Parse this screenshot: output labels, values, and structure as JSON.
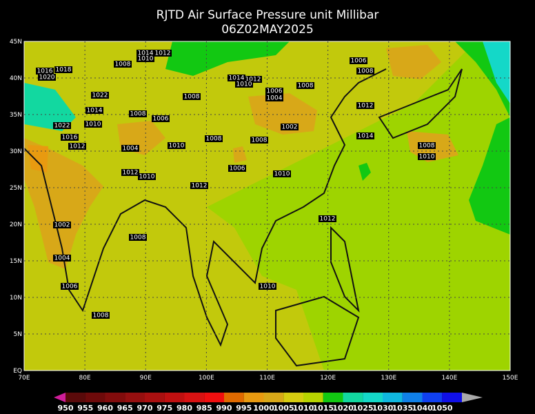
{
  "title": "RJTD Air Surface Pressure unit Millibar",
  "subtitle": "06Z02MAY2025",
  "lat_labels": [
    "45N",
    "40N",
    "35N",
    "30N",
    "25N",
    "20N",
    "15N",
    "10N",
    "5N",
    "EQ"
  ],
  "lon_labels": [
    "70E",
    "80E",
    "90E",
    "100E",
    "110E",
    "120E",
    "130E",
    "140E",
    "150E"
  ],
  "colorbar": {
    "labels": [
      "950",
      "955",
      "960",
      "965",
      "970",
      "975",
      "980",
      "985",
      "990",
      "995",
      "1000",
      "1005",
      "1010",
      "1015",
      "1020",
      "1025",
      "1030",
      "1035",
      "1040",
      "1050"
    ],
    "colors": [
      "#d01e9a",
      "#5a0a0a",
      "#6e0a0a",
      "#820c0c",
      "#960f0f",
      "#aa1010",
      "#c01010",
      "#d81212",
      "#f00f0f",
      "#e06a00",
      "#e89a10",
      "#d8a818",
      "#d6cc10",
      "#b8d400",
      "#12c812",
      "#12d8a0",
      "#14d8c8",
      "#10b8e0",
      "#1080e8",
      "#1040f0",
      "#1010e8",
      "#aaaaaa"
    ]
  },
  "isobar_labels": [
    "1014",
    "1012",
    "1010",
    "1008",
    "1016",
    "1018",
    "1020",
    "1006",
    "1008",
    "1014",
    "1012",
    "1010",
    "1008",
    "1006",
    "1004",
    "1008",
    "1022",
    "1012",
    "1008",
    "1006",
    "1014",
    "1010",
    "1022",
    "1002",
    "1016",
    "1014",
    "1012",
    "1008",
    "1008",
    "1004",
    "1010",
    "1008",
    "1010",
    "1006",
    "1012",
    "1010",
    "1010",
    "1012",
    "1012",
    "1002",
    "1008",
    "1004",
    "1006",
    "1010",
    "1008"
  ]
}
